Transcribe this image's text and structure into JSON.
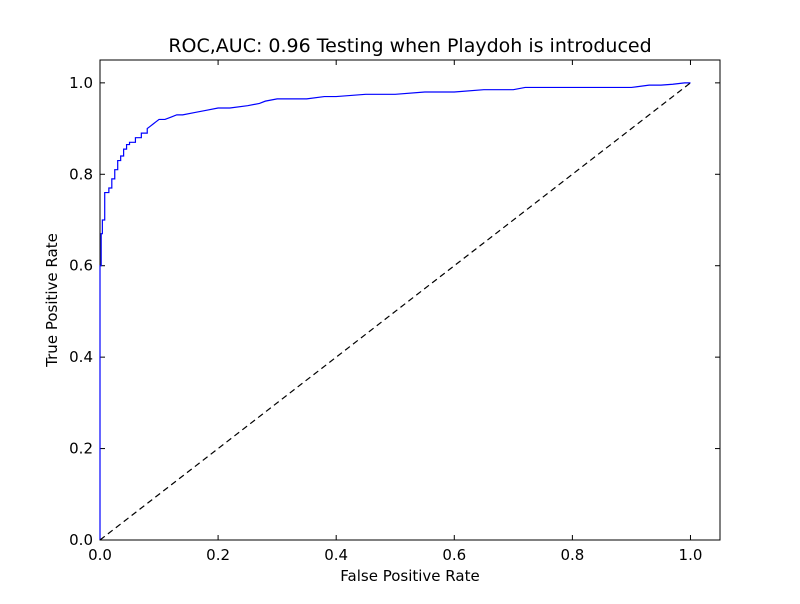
{
  "chart_data": {
    "type": "line",
    "title": "ROC,AUC: 0.96 Testing when Playdoh is introduced",
    "xlabel": "False Positive Rate",
    "ylabel": "True Positive Rate",
    "xlim": [
      0.0,
      1.05
    ],
    "ylim": [
      0.0,
      1.05
    ],
    "xticks": [
      0.0,
      0.2,
      0.4,
      0.6,
      0.8,
      1.0
    ],
    "xtick_labels": [
      "0.0",
      "0.2",
      "0.4",
      "0.6",
      "0.8",
      "1.0"
    ],
    "yticks": [
      0.0,
      0.2,
      0.4,
      0.6,
      0.8,
      1.0
    ],
    "ytick_labels": [
      "0.0",
      "0.2",
      "0.4",
      "0.6",
      "0.8",
      "1.0"
    ],
    "grid": false,
    "series": [
      {
        "style": "solid",
        "color": "#0000ff",
        "x": [
          0.0,
          0.0,
          0.002,
          0.002,
          0.004,
          0.004,
          0.008,
          0.008,
          0.015,
          0.015,
          0.02,
          0.02,
          0.025,
          0.025,
          0.03,
          0.03,
          0.035,
          0.035,
          0.04,
          0.04,
          0.045,
          0.045,
          0.05,
          0.05,
          0.06,
          0.06,
          0.07,
          0.07,
          0.08,
          0.08,
          0.085,
          0.09,
          0.095,
          0.1,
          0.11,
          0.12,
          0.13,
          0.14,
          0.16,
          0.18,
          0.2,
          0.22,
          0.25,
          0.27,
          0.28,
          0.3,
          0.35,
          0.38,
          0.4,
          0.45,
          0.5,
          0.55,
          0.6,
          0.65,
          0.7,
          0.72,
          0.75,
          0.8,
          0.85,
          0.9,
          0.93,
          0.95,
          0.97,
          0.99,
          1.0
        ],
        "y": [
          0.0,
          0.6,
          0.6,
          0.67,
          0.67,
          0.7,
          0.7,
          0.76,
          0.76,
          0.77,
          0.77,
          0.79,
          0.79,
          0.81,
          0.81,
          0.83,
          0.83,
          0.84,
          0.84,
          0.855,
          0.855,
          0.865,
          0.865,
          0.87,
          0.87,
          0.88,
          0.88,
          0.89,
          0.89,
          0.9,
          0.905,
          0.91,
          0.915,
          0.92,
          0.92,
          0.925,
          0.93,
          0.93,
          0.935,
          0.94,
          0.945,
          0.945,
          0.95,
          0.955,
          0.96,
          0.965,
          0.965,
          0.97,
          0.97,
          0.975,
          0.975,
          0.98,
          0.98,
          0.985,
          0.985,
          0.99,
          0.99,
          0.99,
          0.99,
          0.99,
          0.995,
          0.995,
          0.997,
          1.0,
          1.0
        ]
      },
      {
        "style": "dashed",
        "color": "#000000",
        "x": [
          0.0,
          1.0
        ],
        "y": [
          0.0,
          1.0
        ]
      }
    ]
  }
}
